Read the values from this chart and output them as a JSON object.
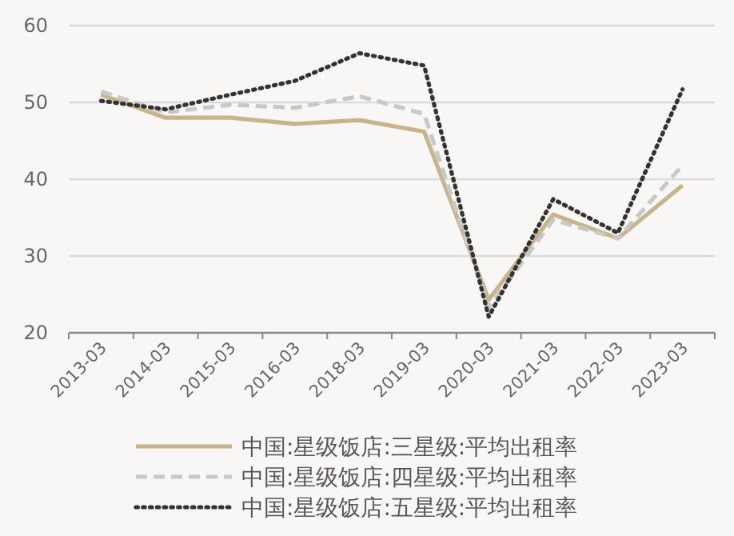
{
  "chart_data": {
    "type": "line",
    "categories": [
      "2013-03",
      "2014-03",
      "2015-03",
      "2016-03",
      "2018-03",
      "2019-03",
      "2020-03",
      "2021-03",
      "2022-03",
      "2023-03"
    ],
    "series": [
      {
        "name": "中国:星级饭店:三星级:平均出租率",
        "color": "#c8b48c",
        "line_style": "solid",
        "values": [
          51.0,
          48.0,
          48.0,
          47.2,
          47.7,
          46.2,
          24.3,
          35.4,
          32.3,
          39.2
        ]
      },
      {
        "name": "中国:星级饭店:四星级:平均出租率",
        "color": "#c8c8c8",
        "line_style": "dashed",
        "values": [
          51.4,
          48.7,
          49.7,
          49.3,
          50.8,
          48.5,
          23.3,
          34.7,
          32.3,
          41.8
        ]
      },
      {
        "name": "中国:星级饭店:五星级:平均出租率",
        "color": "#333333",
        "line_style": "dotted",
        "values": [
          50.2,
          49.1,
          51.0,
          52.8,
          56.4,
          54.8,
          22.1,
          37.4,
          33.0,
          51.7
        ]
      }
    ],
    "ylim": [
      20,
      60
    ],
    "yticks": [
      20,
      30,
      40,
      50,
      60
    ],
    "grid": "y",
    "legend": "bottom",
    "marker": "none"
  }
}
